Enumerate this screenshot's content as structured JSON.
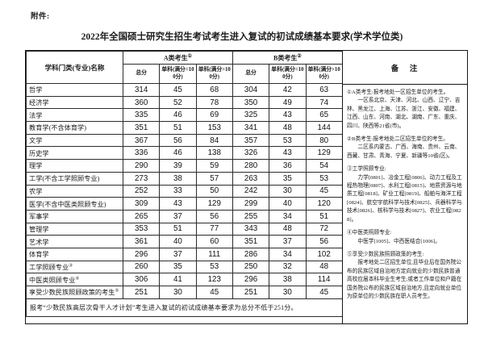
{
  "page": {
    "attachment_label": "附件:",
    "title": "2022年全国硕士研究生招生考试考生进入复试的初试成绩基本要求(学术学位类)"
  },
  "table": {
    "header": {
      "subject_col": "学科门类(专业)名称",
      "group_a": {
        "label": "A类考生",
        "sup": "①"
      },
      "group_b": {
        "label": "B类考生",
        "sup": "②"
      },
      "sub_cols": [
        "总分",
        "单科(满分=100分)",
        "单科(满分>100分)"
      ]
    },
    "rows": [
      {
        "label": "哲学",
        "sup": "",
        "values": [
          314,
          45,
          68,
          304,
          42,
          63
        ]
      },
      {
        "label": "经济学",
        "sup": "",
        "values": [
          360,
          52,
          78,
          350,
          49,
          74
        ]
      },
      {
        "label": "法学",
        "sup": "",
        "values": [
          335,
          46,
          69,
          325,
          43,
          65
        ]
      },
      {
        "label": "教育学(不含体育学)",
        "sup": "",
        "values": [
          351,
          51,
          153,
          341,
          48,
          144
        ]
      },
      {
        "label": "文学",
        "sup": "",
        "values": [
          367,
          56,
          84,
          357,
          53,
          80
        ]
      },
      {
        "label": "历史学",
        "sup": "",
        "values": [
          336,
          46,
          138,
          326,
          43,
          129
        ]
      },
      {
        "label": "理学",
        "sup": "",
        "values": [
          290,
          39,
          59,
          280,
          36,
          54
        ]
      },
      {
        "label": "工学(不含工学照顾专业)",
        "sup": "",
        "values": [
          273,
          38,
          57,
          263,
          35,
          53
        ]
      },
      {
        "label": "农学",
        "sup": "",
        "values": [
          252,
          33,
          50,
          242,
          30,
          45
        ]
      },
      {
        "label": "医学(不含中医类照顾专业)",
        "sup": "",
        "values": [
          309,
          43,
          129,
          299,
          40,
          120
        ]
      },
      {
        "label": "军事学",
        "sup": "",
        "values": [
          265,
          37,
          56,
          255,
          34,
          51
        ]
      },
      {
        "label": "管理学",
        "sup": "",
        "values": [
          353,
          51,
          77,
          343,
          48,
          72
        ]
      },
      {
        "label": "艺术学",
        "sup": "",
        "values": [
          361,
          40,
          60,
          351,
          37,
          56
        ]
      },
      {
        "label": "体育学",
        "sup": "",
        "values": [
          296,
          37,
          111,
          286,
          34,
          102
        ]
      },
      {
        "label": "工学照顾专业",
        "sup": "③",
        "values": [
          260,
          35,
          53,
          250,
          32,
          48
        ]
      },
      {
        "label": "中医类照顾专业",
        "sup": "④",
        "values": [
          306,
          41,
          123,
          296,
          38,
          114
        ]
      },
      {
        "label": "享受少数民族照顾政策的考生",
        "sup": "⑤",
        "values": [
          251,
          30,
          45,
          251,
          30,
          45
        ]
      }
    ],
    "footer_note": "报考“少数民族高层次骨干人才计划”考生进入复试的初试成绩基本要求为总分不低于251分。"
  },
  "remarks": {
    "header": "备　注",
    "sections": [
      {
        "lines": [
          {
            "text": "①A类考生:报考地处一区招生单位的考生。",
            "indent": false
          },
          {
            "text": "一区系北京、天津、河北、山西、辽宁、吉林、黑龙江、上海、江苏、浙江、安徽、福建、江西、山东、河南、湖北、湖南、广东、重庆、四川、陕西等21省(市)。",
            "indent": true
          }
        ]
      },
      {
        "lines": [
          {
            "text": "②B类考生:报考地处二区招生单位的考生。",
            "indent": false
          },
          {
            "text": "二区系内蒙古、广西、海南、贵州、云南、西藏、甘肃、青海、宁夏、新疆等10省(区)。",
            "indent": true
          }
        ]
      },
      {
        "lines": [
          {
            "text": "③工学照顾专业:",
            "indent": false
          },
          {
            "text": "力学[0801]、冶金工程[0806]、动力工程及工程热物理[0807]、水利工程[0815]、地质资源与地质工程[0818]、矿业工程[0819]、船舶与海洋工程[0824]、航空宇航科学与技术[0825]、兵器科学与技术[0826]、核科学与技术[0827]、农业工程[0828]。",
            "indent": true
          }
        ]
      },
      {
        "lines": [
          {
            "text": "④中医类照顾专业:",
            "indent": false
          },
          {
            "text": "中医学[1005]、中西医结合[1006]。",
            "indent": true
          }
        ]
      },
      {
        "lines": [
          {
            "text": "⑤享受少数民族照顾政策的考生:",
            "indent": false
          },
          {
            "text": "报考地处二区招生单位,且毕业后在国务院公布的民族区域自治地方定向就业的少数民族普通高校应届本科毕业生考生;或者工作单位和户籍在国务院公布的民族区域自治地方,且定向就业单位为原单位的少数民族在职人员考生。",
            "indent": true
          }
        ]
      }
    ]
  }
}
